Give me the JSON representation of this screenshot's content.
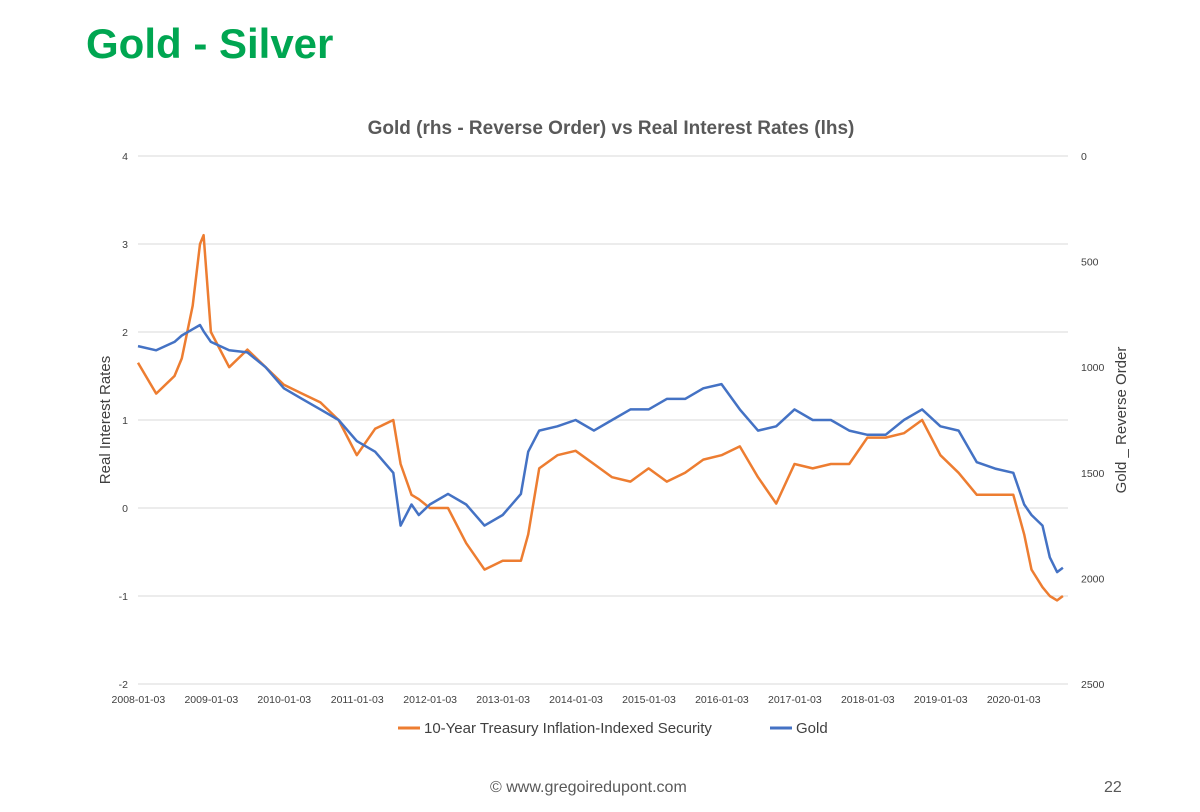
{
  "slide": {
    "title": "Gold - Silver",
    "footer": "© www.gregoiredupont.com",
    "page_number": "22"
  },
  "chart_data": {
    "type": "line",
    "title": "Gold (rhs - Reverse Order) vs Real Interest Rates (lhs)",
    "ylabel": "Real Interest Rates",
    "y2label": "Gold _ Reverse Order",
    "ylim": [
      -2,
      4
    ],
    "y2lim": [
      2500,
      0
    ],
    "y2_reversed": true,
    "grid": true,
    "legend_position": "bottom",
    "x_ticks": [
      "2008-01-03",
      "2009-01-03",
      "2010-01-03",
      "2011-01-03",
      "2012-01-03",
      "2013-01-03",
      "2014-01-03",
      "2015-01-03",
      "2016-01-03",
      "2017-01-03",
      "2018-01-03",
      "2019-01-03",
      "2020-01-03"
    ],
    "y_ticks": [
      "4",
      "3",
      "2",
      "1",
      "0",
      "-1",
      "-2"
    ],
    "y2_ticks": [
      "0",
      "500",
      "1000",
      "1500",
      "2000",
      "2500"
    ],
    "x": [
      2008.0,
      2008.25,
      2008.5,
      2008.6,
      2008.75,
      2008.85,
      2008.9,
      2009.0,
      2009.25,
      2009.5,
      2009.75,
      2010.0,
      2010.25,
      2010.5,
      2010.75,
      2011.0,
      2011.25,
      2011.5,
      2011.6,
      2011.75,
      2011.85,
      2012.0,
      2012.25,
      2012.5,
      2012.75,
      2013.0,
      2013.25,
      2013.35,
      2013.5,
      2013.75,
      2014.0,
      2014.25,
      2014.5,
      2014.75,
      2015.0,
      2015.25,
      2015.5,
      2015.75,
      2016.0,
      2016.25,
      2016.5,
      2016.75,
      2017.0,
      2017.25,
      2017.5,
      2017.75,
      2018.0,
      2018.25,
      2018.5,
      2018.75,
      2019.0,
      2019.25,
      2019.5,
      2019.75,
      2020.0,
      2020.15,
      2020.25,
      2020.4,
      2020.5,
      2020.6,
      2020.68
    ],
    "series": [
      {
        "name": "10-Year Treasury Inflation-Indexed Security",
        "axis": "left",
        "color": "#ed7d31",
        "values": [
          1.65,
          1.3,
          1.5,
          1.7,
          2.3,
          3.0,
          3.1,
          2.0,
          1.6,
          1.8,
          1.6,
          1.4,
          1.3,
          1.2,
          1.0,
          0.6,
          0.9,
          1.0,
          0.5,
          0.15,
          0.1,
          0.0,
          0.0,
          -0.4,
          -0.7,
          -0.6,
          -0.6,
          -0.3,
          0.45,
          0.6,
          0.65,
          0.5,
          0.35,
          0.3,
          0.45,
          0.3,
          0.4,
          0.55,
          0.6,
          0.7,
          0.35,
          0.05,
          0.5,
          0.45,
          0.5,
          0.5,
          0.8,
          0.8,
          0.85,
          1.0,
          0.6,
          0.4,
          0.15,
          0.15,
          0.15,
          -0.3,
          -0.7,
          -0.9,
          -1.0,
          -1.05,
          -1.0
        ]
      },
      {
        "name": "Gold",
        "axis": "right",
        "color": "#4472c4",
        "values": [
          900,
          920,
          880,
          850,
          820,
          800,
          830,
          880,
          920,
          930,
          1000,
          1100,
          1150,
          1200,
          1250,
          1350,
          1400,
          1500,
          1750,
          1650,
          1700,
          1650,
          1600,
          1650,
          1750,
          1700,
          1600,
          1400,
          1300,
          1280,
          1250,
          1300,
          1250,
          1200,
          1200,
          1150,
          1150,
          1100,
          1080,
          1200,
          1300,
          1280,
          1200,
          1250,
          1250,
          1300,
          1320,
          1320,
          1250,
          1200,
          1280,
          1300,
          1450,
          1480,
          1500,
          1650,
          1700,
          1750,
          1900,
          1970,
          1950
        ]
      }
    ]
  }
}
